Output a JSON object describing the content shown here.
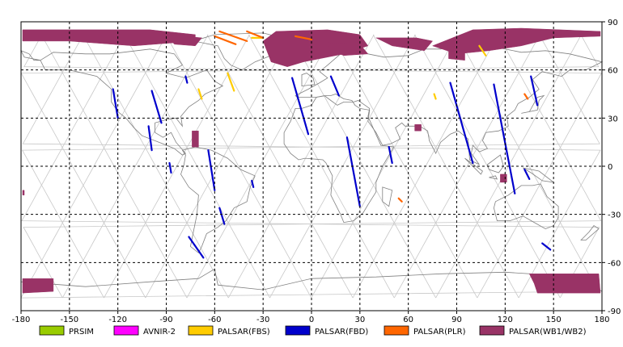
{
  "map": {
    "lon_ticks": [
      "-180",
      "-150",
      "-120",
      "-90",
      "-60",
      "-30",
      "0",
      "30",
      "60",
      "90",
      "120",
      "150",
      "180"
    ],
    "lat_ticks": [
      "90",
      "60",
      "30",
      "0",
      "-30",
      "-60",
      "-90"
    ],
    "lon_range": [
      -180,
      180
    ],
    "lat_range": [
      -90,
      90
    ],
    "grid": true,
    "grid_style": "dashed",
    "colors": {
      "frame": "#000000",
      "grid": "#000000",
      "coast": "#808080",
      "orbit": "#c8c8c8"
    }
  },
  "legend": {
    "items": [
      {
        "label": "PRSIM",
        "color": "#99cc00"
      },
      {
        "label": "AVNIR-2",
        "color": "#ff00ff"
      },
      {
        "label": "PALSAR(FBS)",
        "color": "#ffcc00"
      },
      {
        "label": "PALSAR(FBD)",
        "color": "#0000cc"
      },
      {
        "label": "PALSAR(PLR)",
        "color": "#ff6600"
      },
      {
        "label": "PALSAR(WB1/WB2)",
        "color": "#993366"
      }
    ]
  },
  "chart_data": {
    "type": "map",
    "x_range": [
      -180,
      180
    ],
    "y_range": [
      -90,
      90
    ],
    "series": [
      {
        "name": "PALSAR(WB1/WB2)",
        "color": "#993366",
        "polygons": [
          [
            [
              -179,
              85
            ],
            [
              -100,
              85
            ],
            [
              -72,
              82
            ],
            [
              -72,
              78
            ],
            [
              -110,
              75
            ],
            [
              -150,
              78
            ],
            [
              -179,
              78
            ]
          ],
          [
            [
              -90,
              82
            ],
            [
              -68,
              80
            ],
            [
              -72,
              75
            ],
            [
              -85,
              76
            ]
          ],
          [
            [
              -22,
              84
            ],
            [
              10,
              85
            ],
            [
              30,
              82
            ],
            [
              35,
              75
            ],
            [
              20,
              70
            ],
            [
              -5,
              65
            ],
            [
              -15,
              62
            ],
            [
              -25,
              65
            ],
            [
              -30,
              78
            ]
          ],
          [
            [
              10,
              77
            ],
            [
              30,
              76
            ],
            [
              35,
              70
            ],
            [
              20,
              69
            ],
            [
              12,
              72
            ]
          ],
          [
            [
              40,
              80
            ],
            [
              65,
              80
            ],
            [
              75,
              78
            ],
            [
              70,
              72
            ],
            [
              50,
              75
            ]
          ],
          [
            [
              75,
              75
            ],
            [
              100,
              85
            ],
            [
              130,
              86
            ],
            [
              179,
              84
            ],
            [
              179,
              81
            ],
            [
              150,
              80
            ],
            [
              130,
              75
            ],
            [
              110,
              72
            ],
            [
              90,
              70
            ]
          ],
          [
            [
              85,
              72
            ],
            [
              95,
              72
            ],
            [
              95,
              66
            ],
            [
              85,
              67
            ]
          ],
          [
            [
              -74,
              22
            ],
            [
              -70,
              22
            ],
            [
              -70,
              12
            ],
            [
              -74,
              12
            ]
          ],
          [
            [
              64,
              26
            ],
            [
              68,
              26
            ],
            [
              68,
              22
            ],
            [
              64,
              22
            ]
          ],
          [
            [
              117,
              -5
            ],
            [
              121,
              -5
            ],
            [
              121,
              -10
            ],
            [
              117,
              -10
            ]
          ],
          [
            [
              -179,
              -70
            ],
            [
              -160,
              -70
            ],
            [
              -160,
              -78
            ],
            [
              -179,
              -79
            ]
          ],
          [
            [
              135,
              -67
            ],
            [
              178,
              -67
            ],
            [
              179,
              -79
            ],
            [
              140,
              -79
            ],
            [
              138,
              -73
            ]
          ],
          [
            [
              -179,
              -15
            ],
            [
              -178,
              -15
            ],
            [
              -178,
              -18
            ],
            [
              -179,
              -18
            ]
          ]
        ]
      },
      {
        "name": "PALSAR(FBD)",
        "color": "#0000cc",
        "segments": [
          [
            [
              -123,
              48
            ],
            [
              -120,
              30
            ]
          ],
          [
            [
              -99,
              47
            ],
            [
              -93,
              27
            ]
          ],
          [
            [
              -101,
              25
            ],
            [
              -99,
              10
            ]
          ],
          [
            [
              -88,
              2
            ],
            [
              -87,
              -4
            ]
          ],
          [
            [
              -78,
              56
            ],
            [
              -77,
              52
            ]
          ],
          [
            [
              -64,
              10
            ],
            [
              -60,
              -15
            ]
          ],
          [
            [
              -57,
              -26
            ],
            [
              -54,
              -36
            ]
          ],
          [
            [
              -76,
              -44
            ],
            [
              -67,
              -57
            ]
          ],
          [
            [
              -37,
              -9
            ],
            [
              -36,
              -13
            ]
          ],
          [
            [
              -12,
              55
            ],
            [
              -2,
              20
            ]
          ],
          [
            [
              22,
              18
            ],
            [
              30,
              -25
            ]
          ],
          [
            [
              12,
              56
            ],
            [
              17,
              44
            ]
          ],
          [
            [
              48,
              12
            ],
            [
              50,
              2
            ]
          ],
          [
            [
              86,
              52
            ],
            [
              100,
              2
            ]
          ],
          [
            [
              113,
              51
            ],
            [
              126,
              -17
            ]
          ],
          [
            [
              132,
              -2
            ],
            [
              135,
              -8
            ]
          ],
          [
            [
              136,
              56
            ],
            [
              140,
              38
            ]
          ],
          [
            [
              143,
              -48
            ],
            [
              148,
              -52
            ]
          ]
        ]
      },
      {
        "name": "PALSAR(FBS)",
        "color": "#ffcc00",
        "segments": [
          [
            [
              -52,
              58
            ],
            [
              -48,
              47
            ]
          ],
          [
            [
              -70,
              48
            ],
            [
              -68,
              42
            ]
          ],
          [
            [
              -37,
              80
            ],
            [
              -30,
              80
            ]
          ],
          [
            [
              104,
              75
            ],
            [
              108,
              69
            ]
          ],
          [
            [
              76,
              45
            ],
            [
              77,
              42
            ]
          ]
        ]
      },
      {
        "name": "PALSAR(PLR)",
        "color": "#ff6600",
        "segments": [
          [
            [
              -60,
              81
            ],
            [
              -47,
              76
            ]
          ],
          [
            [
              -57,
              84
            ],
            [
              -40,
              78
            ]
          ],
          [
            [
              -40,
              84
            ],
            [
              -30,
              80
            ]
          ],
          [
            [
              -10,
              81
            ],
            [
              0,
              79
            ]
          ],
          [
            [
              54,
              -20
            ],
            [
              56,
              -22
            ]
          ],
          [
            [
              132,
              45
            ],
            [
              134,
              42
            ]
          ]
        ]
      }
    ]
  }
}
